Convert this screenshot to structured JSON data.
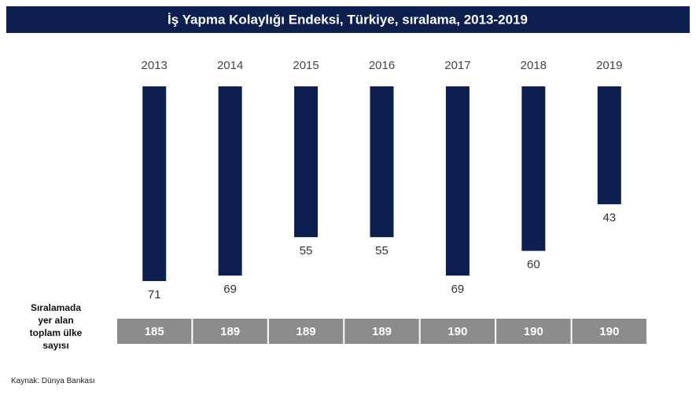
{
  "chart_data": {
    "type": "bar",
    "title": "İş Yapma Kolaylığı Endeksi, Türkiye, sıralama, 2013-2019",
    "categories": [
      "2013",
      "2014",
      "2015",
      "2016",
      "2017",
      "2018",
      "2019"
    ],
    "values": [
      71,
      69,
      55,
      55,
      69,
      60,
      43
    ],
    "color": "#0d1f4f",
    "inverted": true,
    "ylim": [
      0,
      75
    ],
    "table": {
      "label": "Sıralamada yer alan toplam ülke sayısı",
      "values": [
        185,
        189,
        189,
        189,
        190,
        190,
        190
      ],
      "color": "#8c8c8c"
    },
    "source": "Kaynak: Dünya Bankası"
  }
}
